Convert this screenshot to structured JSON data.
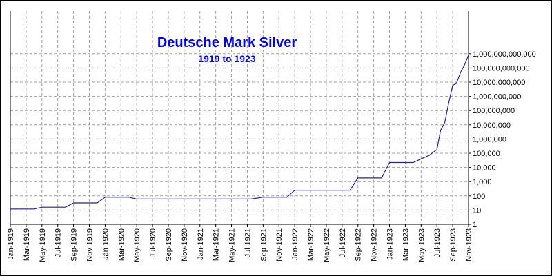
{
  "chart_data": {
    "type": "line",
    "title": "Deutsche Mark Silver",
    "subtitle": "1919 to 1923",
    "xlabel": "",
    "ylabel": "",
    "y_scale": "log",
    "ylim": [
      1,
      1000000000000000
    ],
    "grid": true,
    "legend": "none",
    "colors": {
      "line": "#2020a0",
      "title": "#0000ff",
      "grid": "#a0a0a0",
      "axis": "#000000"
    },
    "x_ticks": [
      "Jan-1919",
      "Mar-1919",
      "May-1919",
      "Jul-1919",
      "Sep-1919",
      "Nov-1919",
      "Jan-1920",
      "Mar-1920",
      "May-1920",
      "Jul-1920",
      "Sep-1920",
      "Nov-1920",
      "Jan-1921",
      "Mar-1921",
      "May-1921",
      "Jul-1921",
      "Sep-1921",
      "Nov-1921",
      "Jan-1922",
      "Mar-1922",
      "May-1922",
      "Jul-1922",
      "Sep-1922",
      "Nov-1922",
      "Jan-1923",
      "Mar-1923",
      "May-1923",
      "Jul-1923",
      "Sep-1923",
      "Nov-1923"
    ],
    "y_ticks": [
      {
        "value": 1,
        "label": "1"
      },
      {
        "value": 10,
        "label": "10"
      },
      {
        "value": 100,
        "label": "100"
      },
      {
        "value": 1000,
        "label": "1,000"
      },
      {
        "value": 10000,
        "label": "10,000"
      },
      {
        "value": 100000,
        "label": "100,000"
      },
      {
        "value": 1000000,
        "label": "1,000,000"
      },
      {
        "value": 10000000,
        "label": "10,000,000"
      },
      {
        "value": 100000000,
        "label": "100,000,000"
      },
      {
        "value": 1000000000,
        "label": "1,000,000,000"
      },
      {
        "value": 10000000000,
        "label": "10,000,000,000"
      },
      {
        "value": 100000000000,
        "label": "100,000,000,000"
      },
      {
        "value": 1000000000000,
        "label": "1,000,000,000,000"
      }
    ],
    "series": [
      {
        "points": [
          {
            "x": "1919-01-01",
            "y": 12
          },
          {
            "x": "1919-04-01",
            "y": 12
          },
          {
            "x": "1919-05-01",
            "y": 16
          },
          {
            "x": "1919-08-01",
            "y": 16
          },
          {
            "x": "1919-09-01",
            "y": 32
          },
          {
            "x": "1919-12-01",
            "y": 32
          },
          {
            "x": "1920-01-01",
            "y": 80
          },
          {
            "x": "1920-04-01",
            "y": 80
          },
          {
            "x": "1920-05-01",
            "y": 60
          },
          {
            "x": "1921-07-15",
            "y": 60
          },
          {
            "x": "1921-09-01",
            "y": 80
          },
          {
            "x": "1921-12-01",
            "y": 80
          },
          {
            "x": "1922-01-01",
            "y": 250
          },
          {
            "x": "1922-08-01",
            "y": 250
          },
          {
            "x": "1922-09-01",
            "y": 1800
          },
          {
            "x": "1922-12-01",
            "y": 1800
          },
          {
            "x": "1923-01-01",
            "y": 22000
          },
          {
            "x": "1923-04-01",
            "y": 22000
          },
          {
            "x": "1923-05-01",
            "y": 40000
          },
          {
            "x": "1923-06-01",
            "y": 70000
          },
          {
            "x": "1923-07-01",
            "y": 180000
          },
          {
            "x": "1923-07-15",
            "y": 4000000
          },
          {
            "x": "1923-08-01",
            "y": 15000000
          },
          {
            "x": "1923-08-15",
            "y": 300000000
          },
          {
            "x": "1923-09-01",
            "y": 6000000000
          },
          {
            "x": "1923-09-15",
            "y": 8000000000
          },
          {
            "x": "1923-10-01",
            "y": 50000000000
          },
          {
            "x": "1923-10-15",
            "y": 150000000000
          },
          {
            "x": "1923-11-01",
            "y": 800000000000
          }
        ]
      }
    ]
  }
}
